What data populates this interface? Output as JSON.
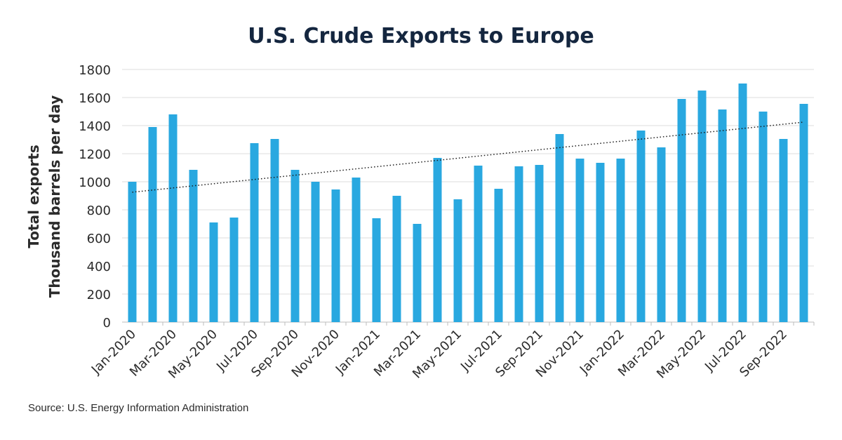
{
  "chart_data": {
    "type": "bar",
    "title": "U.S. Crude Exports to Europe",
    "ylabel_line1": "Total exports",
    "ylabel_line2": "Thousand barrels per day",
    "xlabel": "",
    "ylim": [
      0,
      1800
    ],
    "yticks": [
      0,
      200,
      400,
      600,
      800,
      1000,
      1200,
      1400,
      1600,
      1800
    ],
    "grid": true,
    "bar_color": "#29a8e0",
    "trendline": {
      "type": "linear",
      "style": "dotted",
      "color": "#1a1a1a"
    },
    "categories": [
      "Jan-2020",
      "Feb-2020",
      "Mar-2020",
      "Apr-2020",
      "May-2020",
      "Jun-2020",
      "Jul-2020",
      "Aug-2020",
      "Sep-2020",
      "Oct-2020",
      "Nov-2020",
      "Dec-2020",
      "Jan-2021",
      "Feb-2021",
      "Mar-2021",
      "Apr-2021",
      "May-2021",
      "Jun-2021",
      "Jul-2021",
      "Aug-2021",
      "Sep-2021",
      "Oct-2021",
      "Nov-2021",
      "Dec-2021",
      "Jan-2022",
      "Feb-2022",
      "Mar-2022",
      "Apr-2022",
      "May-2022",
      "Jun-2022",
      "Jul-2022",
      "Aug-2022",
      "Sep-2022",
      "Oct-2022"
    ],
    "tick_labels": [
      "Jan-2020",
      "Mar-2020",
      "May-2020",
      "Jul-2020",
      "Sep-2020",
      "Nov-2020",
      "Jan-2021",
      "Mar-2021",
      "May-2021",
      "Jul-2021",
      "Sep-2021",
      "Nov-2021",
      "Jan-2022",
      "Mar-2022",
      "May-2022",
      "Jul-2022",
      "Sep-2022"
    ],
    "values": [
      1000,
      1390,
      1480,
      1085,
      710,
      745,
      1275,
      1305,
      1085,
      1000,
      945,
      1030,
      740,
      900,
      700,
      1170,
      875,
      1115,
      950,
      1110,
      1120,
      1340,
      1165,
      1135,
      1165,
      1365,
      1245,
      1590,
      1650,
      1515,
      1700,
      1500,
      1305,
      1555
    ]
  },
  "source": "Source: U.S. Energy Information Administration"
}
